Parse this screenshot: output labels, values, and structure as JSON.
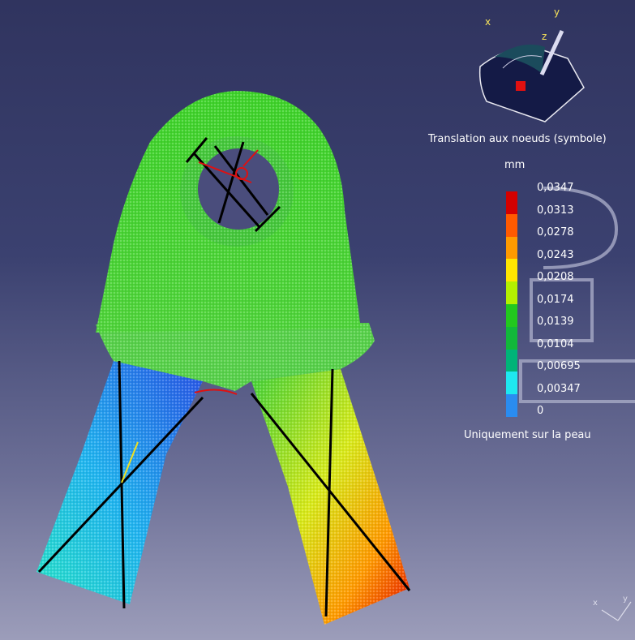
{
  "legend": {
    "title": "Translation aux noeuds (symbole)",
    "unit": "mm",
    "values": [
      "0,0347",
      "0,0313",
      "0,0278",
      "0,0243",
      "0,0208",
      "0,0174",
      "0,0139",
      "0,0104",
      "0,00695",
      "0,00347",
      "0"
    ],
    "colors": [
      "#d40000",
      "#ff5a00",
      "#ff9a00",
      "#ffe600",
      "#b4f000",
      "#22c81e",
      "#12b83a",
      "#00b478",
      "#1ee8f0",
      "#2a8cf0",
      "#0018c8"
    ],
    "footer": "Uniquement sur la peau"
  },
  "compass": {
    "x_label": "x",
    "y_label": "y",
    "z_label": "z"
  },
  "corner_axis": {
    "x_label": "x",
    "y_label": "y"
  }
}
